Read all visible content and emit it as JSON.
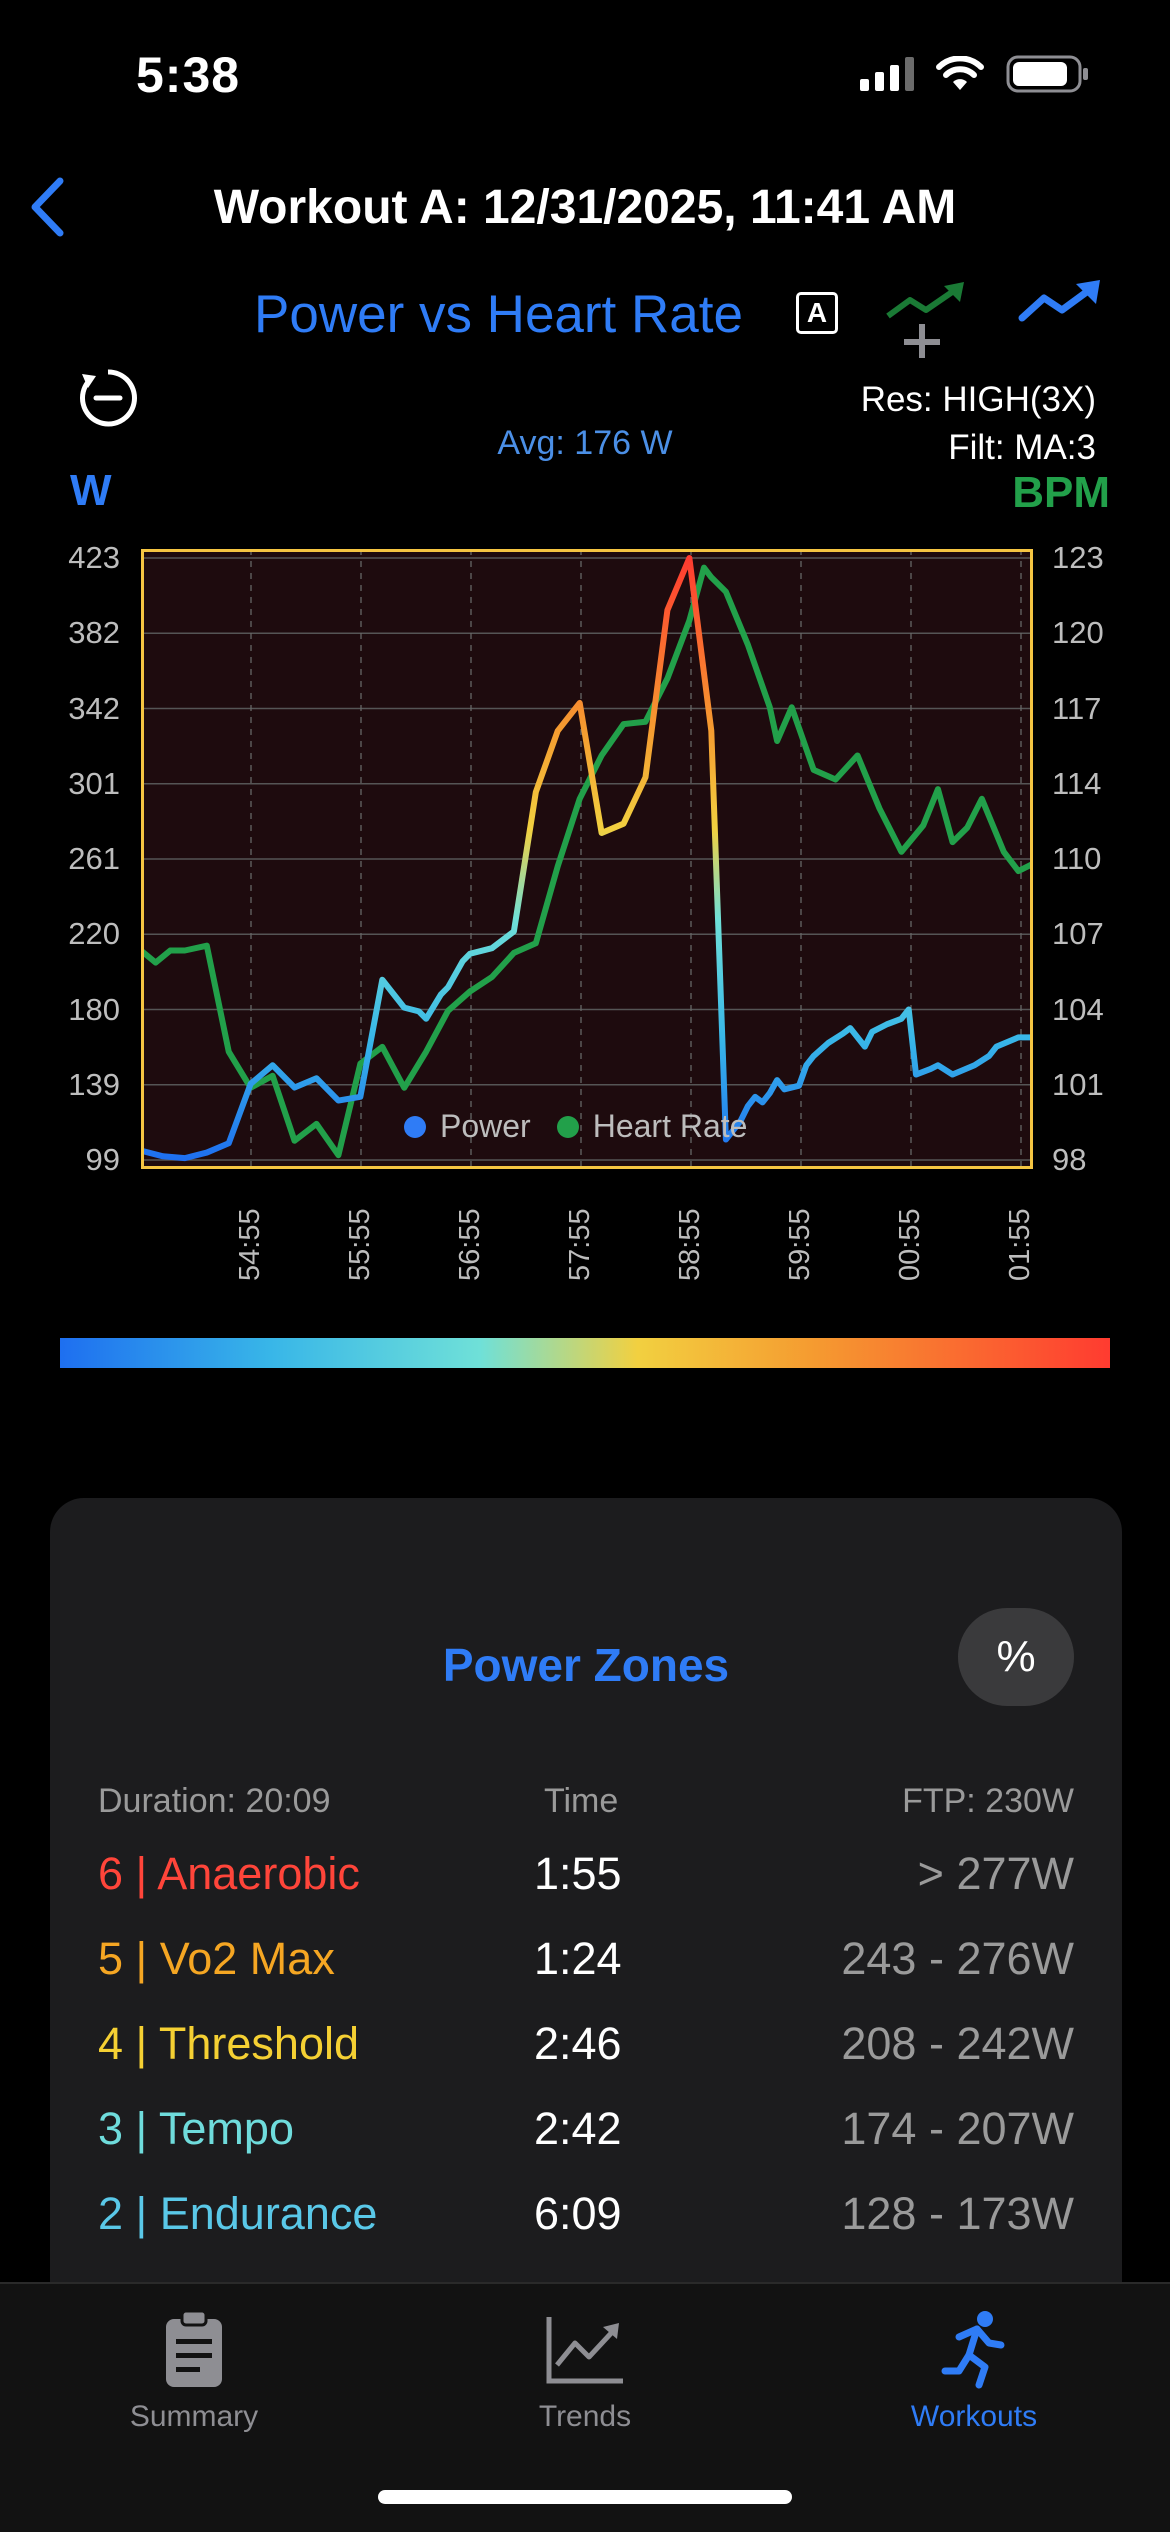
{
  "status_bar": {
    "time": "5:38"
  },
  "nav": {
    "title": "Workout A: 12/31/2025, 11:41 AM"
  },
  "chart_header": {
    "title": "Power vs Heart Rate",
    "auto_badge": "A",
    "resolution": "Res: HIGH(3X)",
    "filter": "Filt: MA:3",
    "average": "Avg: 176 W",
    "left_unit": "W",
    "right_unit": "BPM"
  },
  "chart_data": {
    "type": "line",
    "x_ticks": [
      "54:55",
      "55:55",
      "56:55",
      "57:55",
      "58:55",
      "59:55",
      "00:55",
      "01:55"
    ],
    "y_left_ticks": [
      "423",
      "382",
      "342",
      "301",
      "261",
      "220",
      "180",
      "139",
      "99"
    ],
    "y_right_ticks": [
      "123",
      "120",
      "117",
      "114",
      "110",
      "107",
      "104",
      "101",
      "98"
    ],
    "ylim_left": [
      99,
      423
    ],
    "ylim_right": [
      98,
      123
    ],
    "xlim": [
      0,
      1220
    ],
    "grid": true,
    "legend_position": "bottom-center",
    "series": [
      {
        "name": "Power",
        "axis": "left",
        "x": [
          0,
          30,
          60,
          90,
          120,
          150,
          180,
          210,
          240,
          270,
          300,
          330,
          360,
          380,
          390,
          410,
          420,
          440,
          450,
          480,
          510,
          540,
          570,
          600,
          630,
          660,
          690,
          720,
          750,
          780,
          800,
          810,
          820,
          830,
          840,
          850,
          860,
          870,
          880,
          900,
          910,
          920,
          940,
          960,
          970,
          990,
          1000,
          1020,
          1040,
          1050,
          1060,
          1080,
          1090,
          1110,
          1140,
          1160,
          1170,
          1200,
          1220
        ],
        "values": [
          104,
          101,
          100,
          103,
          108,
          140,
          150,
          138,
          143,
          131,
          133,
          196,
          181,
          179,
          175,
          188,
          192,
          206,
          210,
          213,
          222,
          297,
          330,
          345,
          275,
          280,
          305,
          395,
          423,
          330,
          110,
          115,
          120,
          128,
          133,
          130,
          135,
          142,
          137,
          139,
          150,
          155,
          162,
          167,
          170,
          160,
          168,
          172,
          175,
          180,
          145,
          148,
          150,
          145,
          150,
          155,
          160,
          165,
          165
        ],
        "color_scale": [
          "#1e6ff0",
          "#38b6e8",
          "#6fe0d8",
          "#f2d040",
          "#f59a30",
          "#ff3b30"
        ]
      },
      {
        "name": "Heart Rate",
        "axis": "right",
        "x": [
          0,
          20,
          40,
          60,
          90,
          120,
          150,
          180,
          210,
          240,
          270,
          300,
          330,
          360,
          390,
          420,
          450,
          480,
          510,
          540,
          570,
          600,
          630,
          660,
          690,
          720,
          750,
          770,
          780,
          800,
          830,
          860,
          870,
          890,
          920,
          950,
          980,
          1010,
          1040,
          1070,
          1090,
          1110,
          1130,
          1150,
          1180,
          1200,
          1220
        ],
        "values": [
          106.7,
          106.2,
          106.7,
          106.7,
          106.9,
          102.5,
          101.0,
          101.5,
          98.8,
          99.5,
          98.2,
          102.0,
          102.7,
          101.0,
          102.5,
          104.2,
          105.0,
          105.6,
          106.6,
          107.0,
          110.2,
          113.0,
          114.8,
          116.1,
          116.2,
          118.0,
          120.4,
          122.6,
          122.2,
          121.6,
          119.4,
          116.8,
          115.4,
          116.8,
          114.2,
          113.8,
          114.8,
          112.6,
          110.8,
          111.9,
          113.4,
          111.2,
          111.8,
          113.0,
          110.8,
          110.0,
          110.3
        ],
        "color": "#22a04a"
      }
    ]
  },
  "legend": {
    "power": "Power",
    "heart_rate": "Heart Rate",
    "power_color": "#2f7cf6",
    "heart_rate_color": "#22a04a"
  },
  "zones": {
    "title": "Power Zones",
    "toggle_label": "%",
    "duration": "Duration: 20:09",
    "time_header": "Time",
    "ftp": "FTP: 230W",
    "rows": [
      {
        "name": "6 | Anaerobic",
        "time": "1:55",
        "range": "> 277W",
        "color": "#ff453a"
      },
      {
        "name": "5 | Vo2 Max",
        "time": "1:24",
        "range": "243 - 276W",
        "color": "#f5a623"
      },
      {
        "name": "4 | Threshold",
        "time": "2:46",
        "range": "208 - 242W",
        "color": "#f5d033"
      },
      {
        "name": "3 | Tempo",
        "time": "2:42",
        "range": "174 - 207W",
        "color": "#6fdcdc"
      },
      {
        "name": "2 | Endurance",
        "time": "6:09",
        "range": "128 - 173W",
        "color": "#5ac8e8"
      }
    ]
  },
  "tabs": [
    {
      "label": "Summary",
      "icon": "clipboard-icon"
    },
    {
      "label": "Trends",
      "icon": "line-chart-icon"
    },
    {
      "label": "Workouts",
      "icon": "runner-icon"
    }
  ]
}
